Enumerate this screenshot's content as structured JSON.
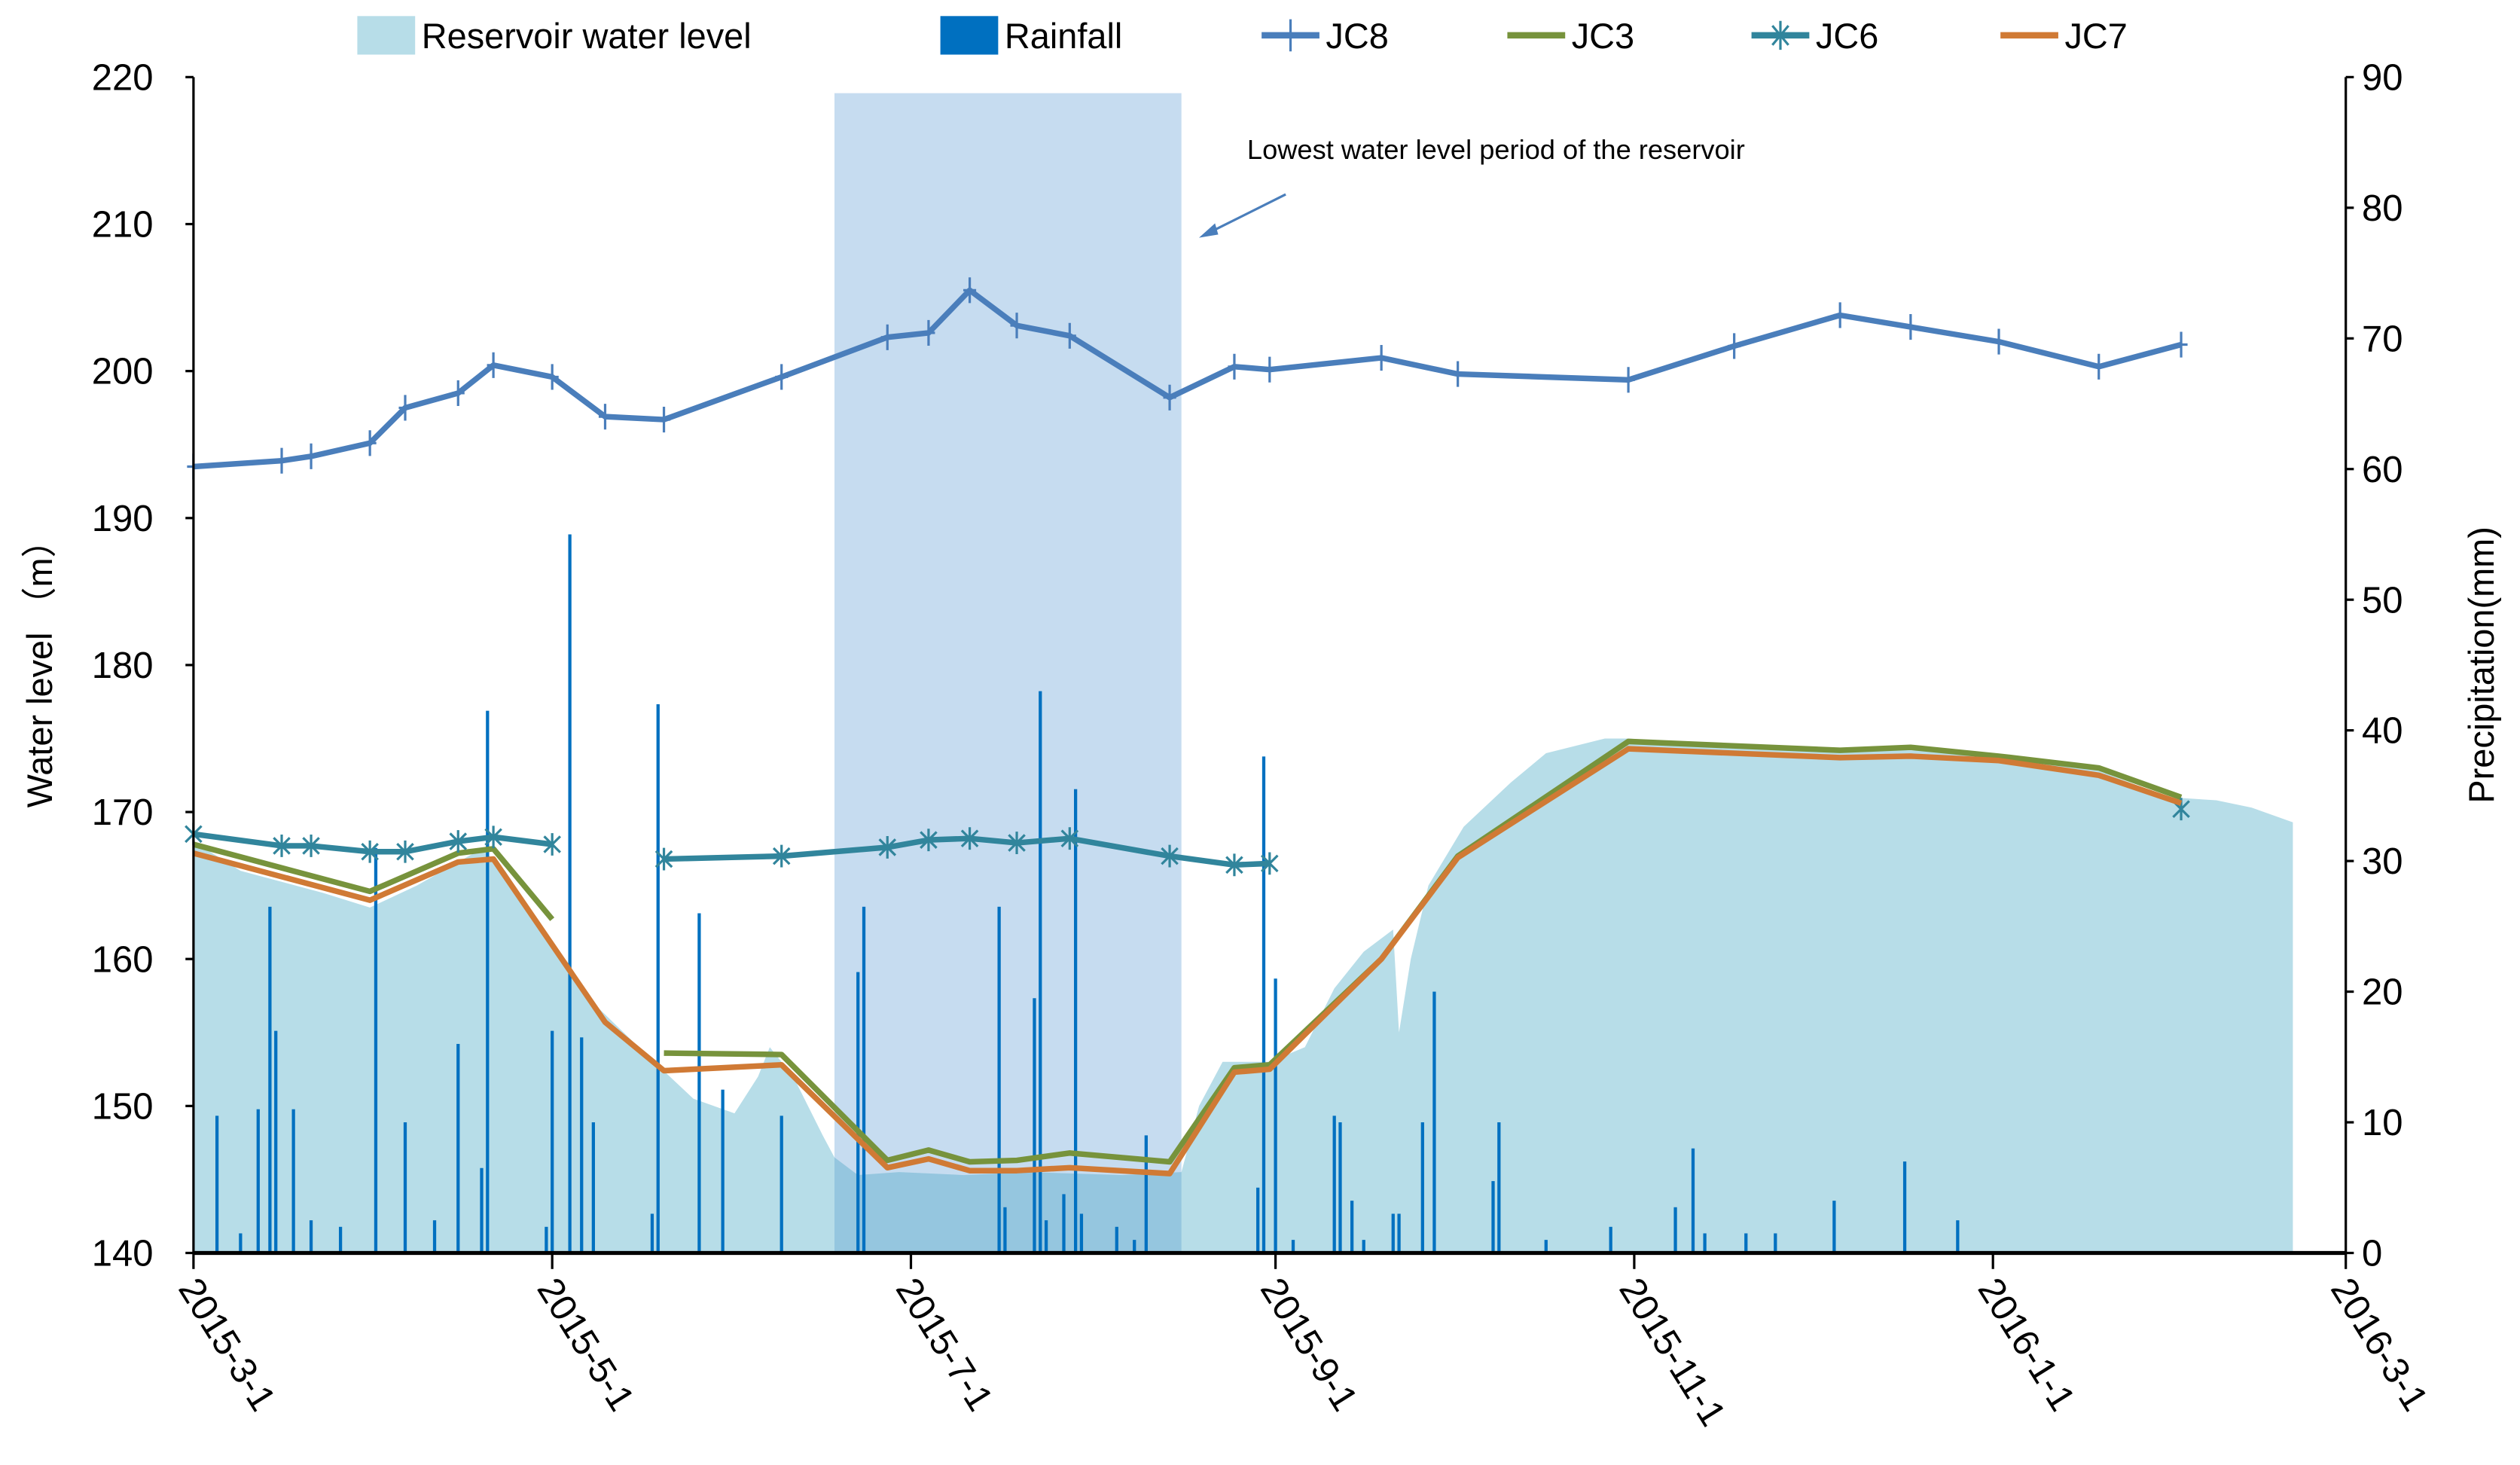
{
  "chart_data": {
    "type": "line",
    "x_unit": "days since 2015-03-01",
    "x_tick_labels": [
      "2015-3-1",
      "2015-5-1",
      "2015-7-1",
      "2015-9-1",
      "2015-11-1",
      "2016-1-1",
      "2016-3-1"
    ],
    "x_tick_days": [
      0,
      61,
      122,
      184,
      245,
      306,
      366
    ],
    "xlim": [
      0,
      366
    ],
    "ylabel": "Water level （m）",
    "ylim": [
      140,
      220
    ],
    "y_ticks": [
      "140",
      "150",
      "160",
      "170",
      "180",
      "190",
      "200",
      "210",
      "220"
    ],
    "y2label": "Precipitation(mm)",
    "y2lim": [
      0,
      90
    ],
    "y2_ticks": [
      "0",
      "10",
      "20",
      "30",
      "40",
      "50",
      "60",
      "70",
      "80",
      "90"
    ],
    "legend": {
      "placement": "top",
      "items": [
        "Reservoir water level",
        "Rainfall",
        "JC8",
        "JC3",
        "JC6",
        "JC7"
      ]
    },
    "annotation": {
      "text": "Lowest water level period of the reservoir",
      "band_days": [
        109,
        168
      ]
    },
    "colors": {
      "reservoir": "#b7dde8",
      "rainfall": "#0070c0",
      "JC8": "#4a7ebb",
      "JC3": "#77933c",
      "JC6": "#31859c",
      "JC7": "#d07a35",
      "band": "#c6dcf0"
    },
    "reservoir": {
      "name": "Reservoir water level",
      "x": [
        0,
        8,
        22,
        30,
        38,
        49,
        53,
        61,
        68,
        77,
        85,
        92,
        96,
        98,
        102,
        107,
        109,
        113,
        120,
        131,
        142,
        158,
        168,
        171,
        175,
        183,
        189,
        194,
        199,
        204,
        205,
        207,
        210,
        216,
        224,
        230,
        240,
        244,
        268,
        292,
        309,
        324,
        336,
        344,
        350,
        357
      ],
      "y": [
        168,
        166,
        164.5,
        163.5,
        165,
        167.5,
        166,
        161,
        157,
        153.5,
        150.5,
        149.5,
        152,
        154,
        152,
        148,
        146.5,
        145.3,
        145.5,
        145.3,
        145.5,
        145.3,
        145.5,
        150,
        153,
        153,
        154,
        158,
        160.5,
        162,
        155,
        160,
        165,
        169,
        172,
        174,
        175,
        175,
        174.3,
        174.2,
        173.8,
        172.8,
        171,
        170.8,
        170.3,
        169.3
      ]
    },
    "rainfall": {
      "name": "Rainfall",
      "x": [
        4,
        8,
        11,
        13,
        14,
        17,
        20,
        25,
        31,
        36,
        41,
        45,
        49,
        50,
        60,
        61,
        64,
        66,
        68,
        78,
        79,
        86,
        90,
        100,
        113,
        114,
        137,
        138,
        143,
        144,
        145,
        148,
        150,
        151,
        157,
        160,
        162,
        181,
        182,
        184,
        187,
        194,
        195,
        197,
        199,
        204,
        205,
        209,
        211,
        221,
        222,
        230,
        241,
        252,
        255,
        257,
        264,
        269,
        279,
        291,
        300
      ],
      "y": [
        10.5,
        1.5,
        11,
        26.5,
        17,
        11,
        2.5,
        2,
        31,
        10,
        2.5,
        16,
        6.5,
        41.5,
        2,
        17,
        55,
        16.5,
        10,
        3,
        42,
        26,
        12.5,
        10.5,
        21.5,
        26.5,
        26.5,
        3.5,
        19.5,
        43,
        2.5,
        4.5,
        35.5,
        3,
        2,
        1,
        9,
        5,
        38,
        21,
        1,
        10.5,
        10,
        4,
        1,
        3,
        3,
        10,
        20,
        5.5,
        10,
        1,
        2,
        3.5,
        8,
        1.5,
        1.5,
        1.5,
        4,
        7,
        2.5
      ]
    },
    "series": [
      {
        "name": "JC8",
        "marker": "plus",
        "x": [
          0,
          15,
          20,
          30,
          36,
          45,
          51,
          61,
          70,
          80,
          100,
          118,
          125,
          132,
          140,
          149,
          166,
          177,
          183,
          202,
          215,
          244,
          262,
          280,
          292,
          307,
          324,
          338
        ],
        "y": [
          193.5,
          193.9,
          194.2,
          195.1,
          197.5,
          198.5,
          200.4,
          199.6,
          196.9,
          196.7,
          199.6,
          202.3,
          202.6,
          205.5,
          203.1,
          202.4,
          198.2,
          200.3,
          200.1,
          200.9,
          199.8,
          199.4,
          201.7,
          203.8,
          203.0,
          202.0,
          200.3,
          201.8
        ]
      },
      {
        "name": "JC3",
        "marker": "none",
        "x": [
          0,
          30,
          45,
          51,
          61,
          null,
          80,
          100,
          118,
          125,
          132,
          140,
          149,
          166,
          177,
          183,
          202,
          215,
          244,
          280,
          292,
          307,
          324,
          338
        ],
        "y": [
          167.8,
          164.6,
          167.2,
          167.5,
          162.7,
          null,
          153.6,
          153.5,
          146.3,
          147.0,
          146.2,
          146.3,
          146.8,
          146.2,
          152.6,
          152.8,
          160,
          167.0,
          174.8,
          174.2,
          174.4,
          173.8,
          173.0,
          171.0
        ]
      },
      {
        "name": "JC6",
        "marker": "star",
        "x": [
          0,
          15,
          20,
          30,
          36,
          45,
          51,
          61,
          null,
          80,
          100,
          118,
          125,
          132,
          140,
          149,
          166,
          177,
          183,
          null,
          338
        ],
        "y": [
          168.5,
          167.7,
          167.7,
          167.3,
          167.3,
          168.0,
          168.3,
          167.8,
          null,
          166.8,
          167.0,
          167.6,
          168.1,
          168.2,
          167.9,
          168.2,
          167.0,
          166.4,
          166.5,
          null,
          170.2
        ]
      },
      {
        "name": "JC7",
        "marker": "none",
        "x": [
          0,
          30,
          45,
          51,
          70,
          80,
          100,
          118,
          125,
          132,
          140,
          149,
          166,
          177,
          183,
          202,
          215,
          244,
          280,
          292,
          307,
          324,
          338
        ],
        "y": [
          167.2,
          164.0,
          166.6,
          166.8,
          155.7,
          152.4,
          152.8,
          145.8,
          146.4,
          145.6,
          145.6,
          145.8,
          145.4,
          152.3,
          152.5,
          160,
          166.9,
          174.3,
          173.7,
          173.8,
          173.5,
          172.5,
          170.6
        ]
      }
    ]
  }
}
